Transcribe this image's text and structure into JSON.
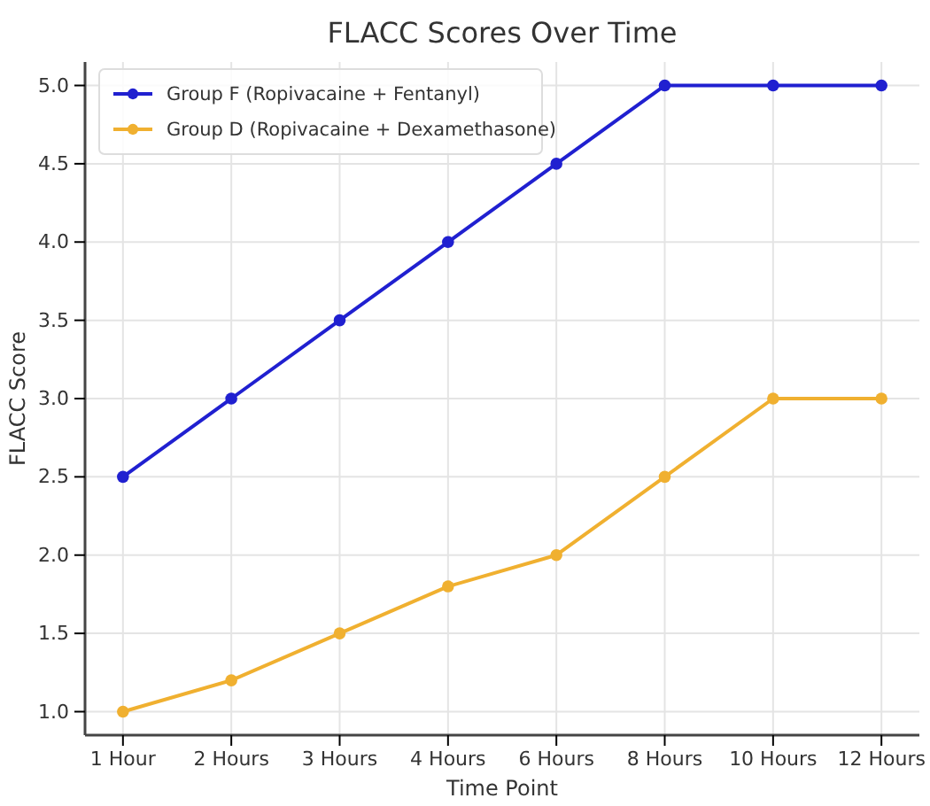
{
  "chart_data": {
    "type": "line",
    "title": "FLACC Scores Over Time",
    "xlabel": "Time Point",
    "ylabel": "FLACC Score",
    "categories": [
      "1 Hour",
      "2 Hours",
      "3 Hours",
      "4 Hours",
      "6 Hours",
      "8 Hours",
      "10 Hours",
      "12 Hours"
    ],
    "series": [
      {
        "name": "Group F (Ropivacaine + Fentanyl)",
        "color": "#2020d0",
        "values": [
          2.5,
          3.0,
          3.5,
          4.0,
          4.5,
          5.0,
          5.0,
          5.0
        ]
      },
      {
        "name": "Group D (Ropivacaine + Dexamethasone)",
        "color": "#f0b030",
        "values": [
          1.0,
          1.2,
          1.5,
          1.8,
          2.0,
          2.5,
          3.0,
          3.0
        ]
      }
    ],
    "ylim": [
      0.85,
      5.15
    ],
    "yticks": [
      {
        "value": 1,
        "label": "1.0"
      },
      {
        "value": 1.5,
        "label": "1.5"
      },
      {
        "value": 2,
        "label": "2.0"
      },
      {
        "value": 2.5,
        "label": "2.5"
      },
      {
        "value": 3,
        "label": "3.0"
      },
      {
        "value": 3.5,
        "label": "3.5"
      },
      {
        "value": 4,
        "label": "4.0"
      },
      {
        "value": 4.5,
        "label": "4.5"
      },
      {
        "value": 5,
        "label": "5.0"
      }
    ],
    "grid": true,
    "legend": "top left",
    "marker": "circle",
    "line_style": "solid"
  }
}
